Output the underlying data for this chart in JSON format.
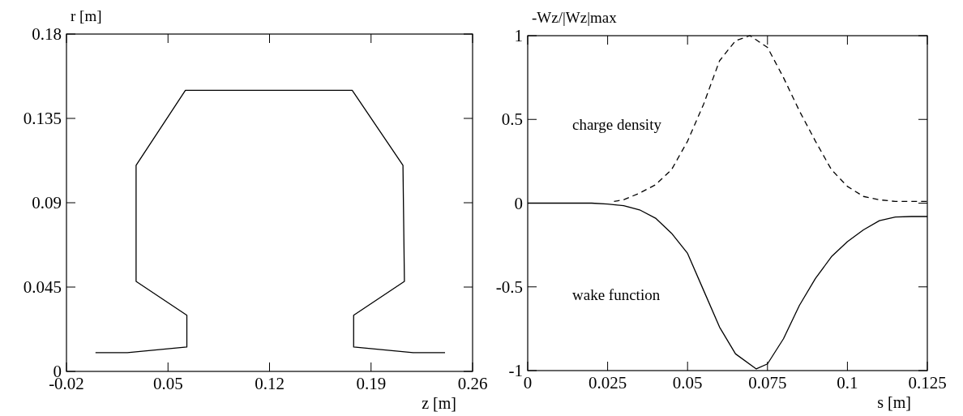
{
  "chart_data": [
    {
      "type": "line",
      "xlabel": "z [m]",
      "ylabel": "r [m]",
      "xlim": [
        -0.02,
        0.26
      ],
      "xticks": [
        -0.02,
        0.05,
        0.12,
        0.19,
        0.26
      ],
      "ylim": [
        0,
        0.18
      ],
      "yticks": [
        0,
        0.045,
        0.09,
        0.135,
        0.18
      ],
      "line_style": "solid",
      "grid": false,
      "series": [
        {
          "color": "#000000",
          "x": [
            0.0,
            0.022,
            0.063,
            0.063,
            0.028,
            0.028,
            0.062,
            0.177,
            0.212,
            0.213,
            0.178,
            0.178,
            0.219,
            0.241
          ],
          "values": [
            0.01,
            0.01,
            0.013,
            0.03,
            0.048,
            0.11,
            0.15,
            0.15,
            0.11,
            0.048,
            0.03,
            0.013,
            0.01,
            0.01
          ]
        }
      ]
    },
    {
      "type": "line",
      "xlabel": "s [m]",
      "ylabel": "-Wz/|Wz|max",
      "xlim": [
        0,
        0.125
      ],
      "xticks": [
        0,
        0.025,
        0.05,
        0.075,
        0.1,
        0.125
      ],
      "ylim": [
        -1,
        1
      ],
      "yticks": [
        -1,
        -0.5,
        0,
        0.5,
        1
      ],
      "grid": false,
      "series": [
        {
          "name": "charge density",
          "color": "#000000",
          "line_style": "dashed",
          "x": [
            0.027,
            0.03,
            0.035,
            0.04,
            0.045,
            0.05,
            0.055,
            0.06,
            0.065,
            0.0695,
            0.075,
            0.08,
            0.085,
            0.09,
            0.095,
            0.1,
            0.105,
            0.11,
            0.115,
            0.125
          ],
          "values": [
            0.01,
            0.02,
            0.06,
            0.11,
            0.2,
            0.37,
            0.59,
            0.85,
            0.97,
            1,
            0.93,
            0.75,
            0.55,
            0.37,
            0.2,
            0.1,
            0.04,
            0.02,
            0.01,
            0.01
          ]
        },
        {
          "name": "wake function",
          "color": "#000000",
          "line_style": "solid",
          "x": [
            0,
            0.02,
            0.025,
            0.03,
            0.035,
            0.04,
            0.045,
            0.05,
            0.055,
            0.06,
            0.065,
            0.0715,
            0.075,
            0.08,
            0.085,
            0.09,
            0.095,
            0.1,
            0.105,
            0.11,
            0.115,
            0.12,
            0.125
          ],
          "values": [
            0,
            0,
            -0.005,
            -0.015,
            -0.04,
            -0.09,
            -0.18,
            -0.3,
            -0.52,
            -0.74,
            -0.9,
            -0.99,
            -0.96,
            -0.81,
            -0.61,
            -0.45,
            -0.32,
            -0.23,
            -0.16,
            -0.105,
            -0.083,
            -0.08,
            -0.08
          ]
        }
      ]
    }
  ]
}
